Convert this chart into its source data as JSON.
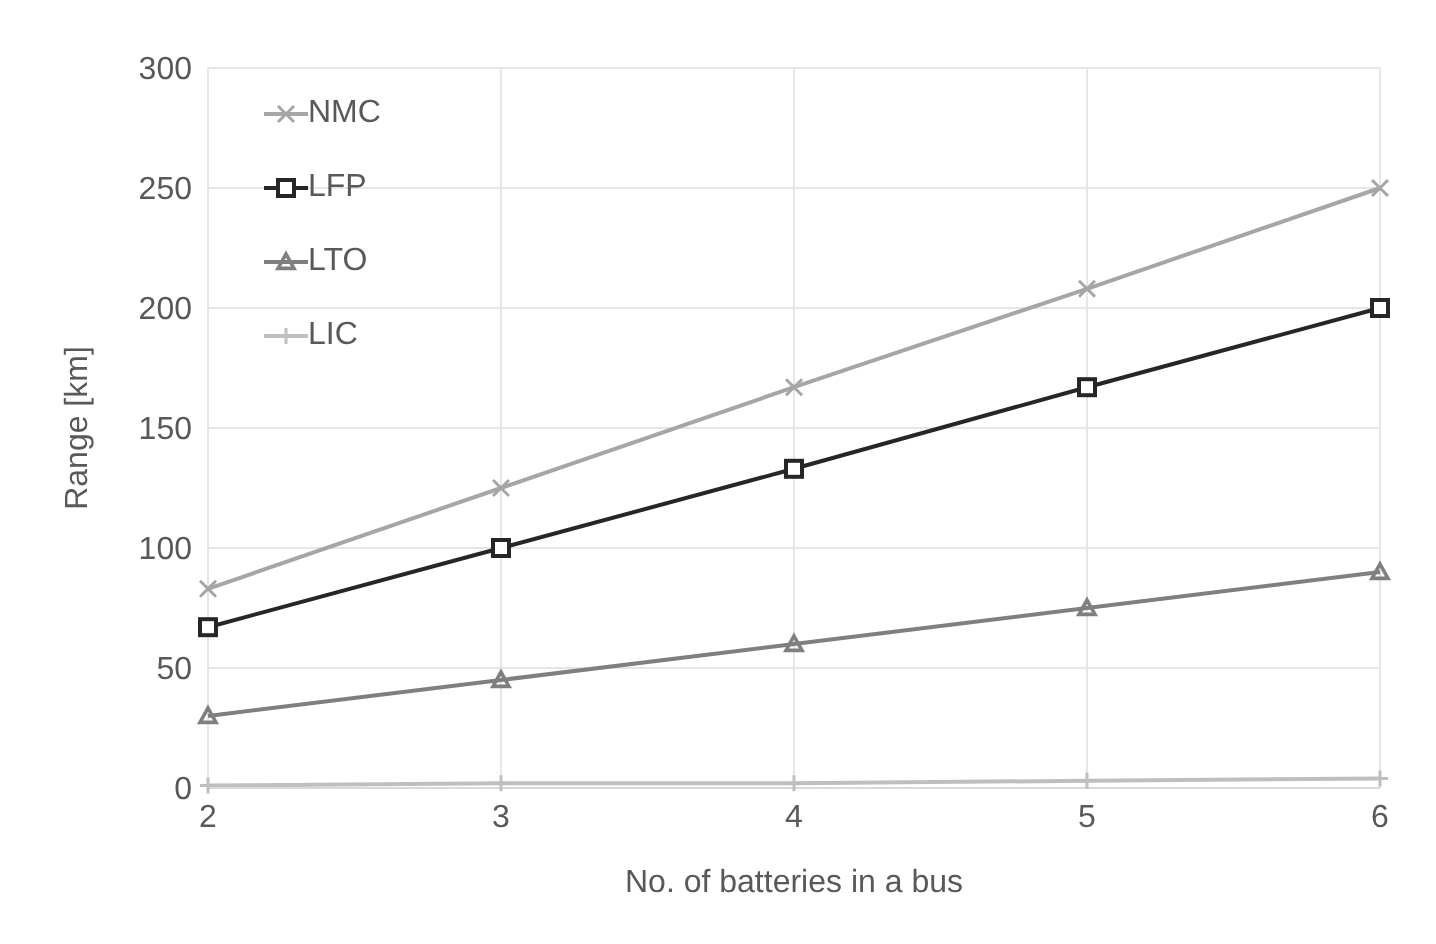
{
  "chart_data": {
    "type": "line",
    "xlabel": "No. of batteries in a bus",
    "ylabel": "Range [km]",
    "x": [
      2,
      3,
      4,
      5,
      6
    ],
    "xlim": [
      2,
      6
    ],
    "xticks": [
      2,
      3,
      4,
      5,
      6
    ],
    "ylim": [
      0,
      300
    ],
    "yticks": [
      0,
      50,
      100,
      150,
      200,
      250,
      300
    ],
    "grid": true,
    "legend": "top left",
    "series": [
      {
        "name": "NMC",
        "color": "#a6a6a6",
        "marker": "cross",
        "values": [
          83,
          125,
          167,
          208,
          250
        ]
      },
      {
        "name": "LFP",
        "color": "#262626",
        "marker": "square",
        "values": [
          67,
          100,
          133,
          167,
          200
        ]
      },
      {
        "name": "LTO",
        "color": "#7f7f7f",
        "marker": "triangle",
        "values": [
          30,
          45,
          60,
          75,
          90
        ]
      },
      {
        "name": "LIC",
        "color": "#bfbfbf",
        "marker": "plus",
        "values": [
          1,
          2,
          2,
          3,
          4
        ]
      }
    ]
  }
}
